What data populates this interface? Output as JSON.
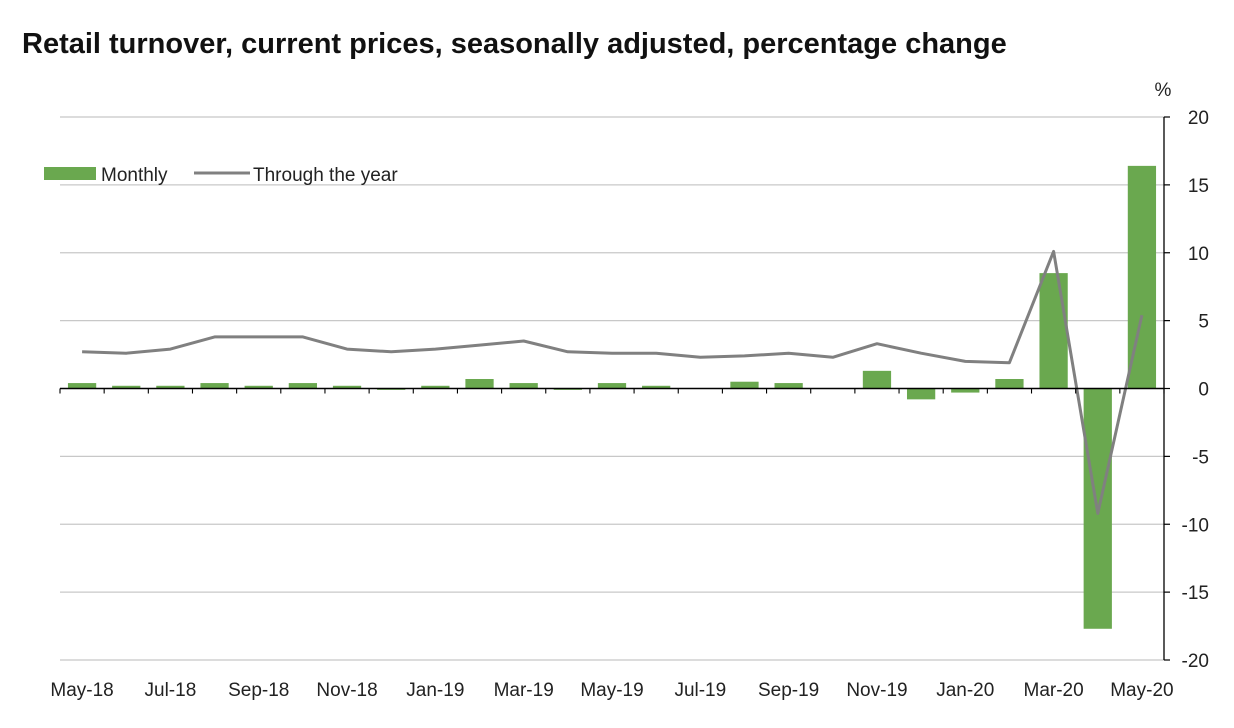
{
  "chart_data": {
    "type": "bar",
    "title": "Retail turnover, current prices, seasonally adjusted, percentage change",
    "xlabel": "",
    "ylabel": "%",
    "ylim": [
      -20,
      20
    ],
    "yticks": [
      20,
      15,
      10,
      5,
      0,
      -5,
      -10,
      -15,
      -20
    ],
    "grid": true,
    "legend_position": "top-left",
    "categories": [
      "May-18",
      "Jun-18",
      "Jul-18",
      "Aug-18",
      "Sep-18",
      "Oct-18",
      "Nov-18",
      "Dec-18",
      "Jan-19",
      "Feb-19",
      "Mar-19",
      "Apr-19",
      "May-19",
      "Jun-19",
      "Jul-19",
      "Aug-19",
      "Sep-19",
      "Oct-19",
      "Nov-19",
      "Dec-19",
      "Jan-20",
      "Feb-20",
      "Mar-20",
      "Apr-20",
      "May-20"
    ],
    "xtick_labels": [
      "May-18",
      "Jul-18",
      "Sep-18",
      "Nov-18",
      "Jan-19",
      "Mar-19",
      "May-19",
      "Jul-19",
      "Sep-19",
      "Nov-19",
      "Jan-20",
      "Mar-20",
      "May-20"
    ],
    "series": [
      {
        "name": "Monthly",
        "kind": "bar",
        "color": "#6aa84f",
        "values": [
          0.4,
          0.2,
          0.2,
          0.4,
          0.2,
          0.4,
          0.2,
          -0.1,
          0.2,
          0.7,
          0.4,
          -0.1,
          0.4,
          0.2,
          0.0,
          0.5,
          0.4,
          0.0,
          1.3,
          -0.8,
          -0.3,
          0.7,
          8.5,
          -17.7,
          16.4
        ]
      },
      {
        "name": "Through the year",
        "kind": "line",
        "color": "#808080",
        "values": [
          2.7,
          2.6,
          2.9,
          3.8,
          3.8,
          3.8,
          2.9,
          2.7,
          2.9,
          3.2,
          3.5,
          2.7,
          2.6,
          2.6,
          2.3,
          2.4,
          2.6,
          2.3,
          3.3,
          2.6,
          2.0,
          1.9,
          10.1,
          -9.2,
          5.4
        ]
      }
    ]
  }
}
